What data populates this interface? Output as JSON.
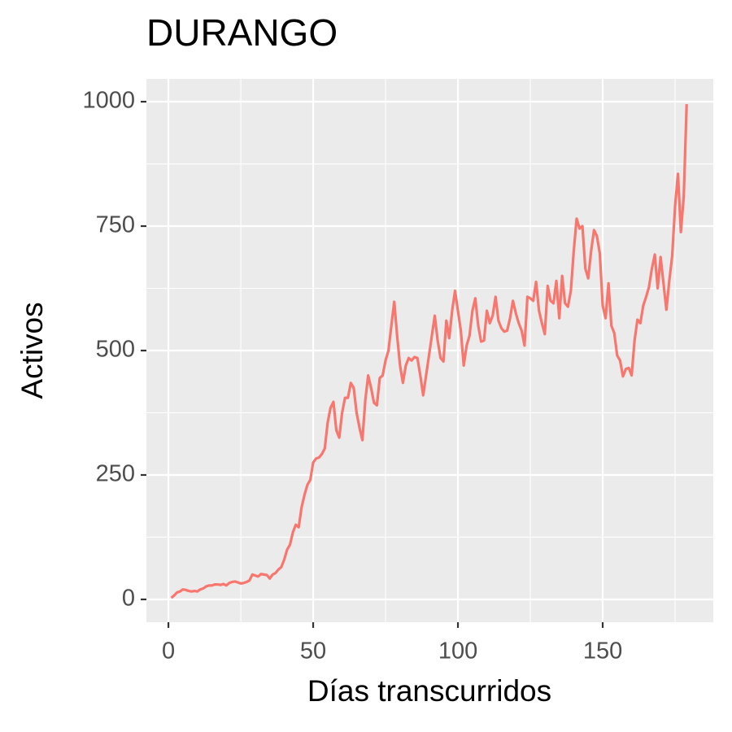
{
  "chart_data": {
    "type": "line",
    "title": "DURANGO",
    "x_label": "Días transcurridos",
    "y_label": "Activos",
    "color": "#F8766D",
    "grid": true,
    "xlim": [
      -7.6,
      188.2
    ],
    "xticks": [
      0,
      50,
      100,
      150
    ],
    "ylim": [
      -45.8,
      1045.8
    ],
    "yticks": [
      0,
      250,
      500,
      750,
      1000
    ],
    "x": [
      1,
      2,
      3,
      4,
      5,
      6,
      7,
      8,
      9,
      10,
      11,
      12,
      13,
      14,
      15,
      16,
      17,
      18,
      19,
      20,
      21,
      22,
      23,
      24,
      25,
      26,
      27,
      28,
      29,
      30,
      31,
      32,
      33,
      34,
      35,
      36,
      37,
      38,
      39,
      40,
      41,
      42,
      43,
      44,
      45,
      46,
      47,
      48,
      49,
      50,
      51,
      52,
      53,
      54,
      55,
      56,
      57,
      58,
      59,
      60,
      61,
      62,
      63,
      64,
      65,
      66,
      67,
      68,
      69,
      70,
      71,
      72,
      73,
      74,
      75,
      76,
      77,
      78,
      79,
      80,
      81,
      82,
      83,
      84,
      85,
      86,
      87,
      88,
      89,
      90,
      91,
      92,
      93,
      94,
      95,
      96,
      97,
      98,
      99,
      100,
      101,
      102,
      103,
      104,
      105,
      106,
      107,
      108,
      109,
      110,
      111,
      112,
      113,
      114,
      115,
      116,
      117,
      118,
      119,
      120,
      121,
      122,
      123,
      124,
      125,
      126,
      127,
      128,
      129,
      130,
      131,
      132,
      133,
      134,
      135,
      136,
      137,
      138,
      139,
      140,
      141,
      142,
      143,
      144,
      145,
      146,
      147,
      148,
      149,
      150,
      151,
      152,
      153,
      154,
      155,
      156,
      157,
      158,
      159,
      160,
      161,
      162,
      163,
      164,
      165,
      166,
      167,
      168,
      169,
      170,
      171,
      172,
      173,
      174,
      175,
      176,
      177,
      178,
      179
    ],
    "values": [
      3,
      8,
      14,
      16,
      20,
      19,
      17,
      16,
      17,
      16,
      20,
      22,
      26,
      28,
      28,
      30,
      30,
      29,
      31,
      28,
      33,
      35,
      36,
      34,
      32,
      33,
      35,
      38,
      50,
      48,
      46,
      51,
      50,
      49,
      42,
      50,
      53,
      60,
      65,
      80,
      100,
      110,
      135,
      150,
      145,
      185,
      210,
      230,
      240,
      275,
      283,
      285,
      292,
      303,
      355,
      385,
      397,
      340,
      325,
      375,
      405,
      405,
      435,
      425,
      375,
      345,
      320,
      400,
      450,
      425,
      395,
      390,
      445,
      450,
      480,
      500,
      550,
      598,
      530,
      470,
      435,
      470,
      485,
      480,
      487,
      485,
      450,
      410,
      450,
      490,
      530,
      570,
      520,
      485,
      478,
      560,
      525,
      580,
      620,
      580,
      540,
      470,
      510,
      530,
      580,
      605,
      550,
      518,
      520,
      580,
      555,
      570,
      608,
      560,
      545,
      538,
      540,
      565,
      600,
      575,
      555,
      540,
      510,
      608,
      605,
      600,
      638,
      580,
      555,
      533,
      630,
      600,
      595,
      640,
      565,
      650,
      595,
      588,
      620,
      700,
      765,
      745,
      750,
      665,
      645,
      700,
      742,
      730,
      695,
      590,
      565,
      635,
      550,
      535,
      490,
      480,
      448,
      463,
      465,
      450,
      520,
      562,
      555,
      590,
      608,
      628,
      665,
      693,
      625,
      688,
      635,
      582,
      640,
      690,
      790,
      855,
      738,
      810,
      995
    ]
  }
}
